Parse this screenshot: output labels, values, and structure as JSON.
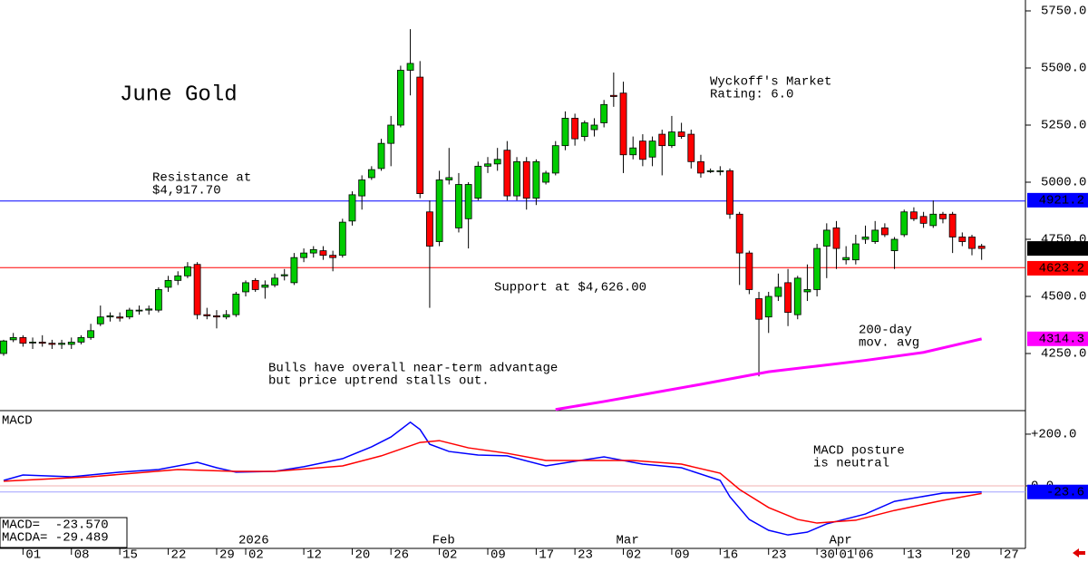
{
  "chart_data": [
    {
      "type": "candlestick",
      "title": "June Gold",
      "rating": [
        "Wyckoff's Market",
        "Rating: 6.0"
      ],
      "comment": [
        "Bulls have overall near-term advantage",
        "but price uptrend stalls out."
      ],
      "open": [
        4250,
        4310,
        4320,
        4300,
        4300,
        4295,
        4290,
        4290,
        4300,
        4320,
        4380,
        4410,
        4410,
        4410,
        4440,
        4440,
        4440,
        4540,
        4570,
        4590,
        4640,
        4420,
        4415,
        4410,
        4420,
        4520,
        4570,
        4540,
        4550,
        4590,
        4560,
        4670,
        4690,
        4700,
        4680,
        4680,
        4830,
        4940,
        5020,
        5060,
        5170,
        5250,
        5490,
        5460,
        4870,
        4740,
        5010,
        4800,
        4840,
        4930,
        5070,
        5080,
        5140,
        4940,
        5090,
        4930,
        5000,
        5040,
        5160,
        5280,
        5200,
        5230,
        5260,
        5380,
        5390,
        5120,
        5180,
        5110,
        5210,
        5160,
        5220,
        5210,
        5090,
        5050,
        5050,
        5050,
        4860,
        4690,
        4490,
        4410,
        4500,
        4560,
        4420,
        4520,
        4530,
        4720,
        4800,
        4660,
        4660,
        4750,
        4740,
        4800,
        4700,
        4770,
        4870,
        4850,
        4810,
        4860,
        4860,
        4760,
        4760,
        4720
      ],
      "high": [
        4310,
        4340,
        4330,
        4320,
        4330,
        4310,
        4310,
        4320,
        4330,
        4380,
        4460,
        4430,
        4430,
        4450,
        4460,
        4460,
        4540,
        4590,
        4610,
        4650,
        4650,
        4450,
        4440,
        4440,
        4520,
        4570,
        4580,
        4570,
        4600,
        4620,
        4690,
        4710,
        4720,
        4720,
        4700,
        4840,
        4960,
        5030,
        5070,
        5190,
        5290,
        5510,
        5670,
        5530,
        4920,
        5050,
        5150,
        5040,
        5000,
        5090,
        5110,
        5150,
        5180,
        5110,
        5110,
        5100,
        5050,
        5180,
        5310,
        5300,
        5270,
        5280,
        5360,
        5480,
        5440,
        5200,
        5210,
        5200,
        5230,
        5290,
        5260,
        5230,
        5120,
        5060,
        5070,
        5060,
        4870,
        4700,
        4520,
        4520,
        4600,
        4620,
        4590,
        4640,
        4730,
        4820,
        4830,
        4720,
        4770,
        4810,
        4830,
        4820,
        4760,
        4880,
        4890,
        4870,
        4920,
        4870,
        4870,
        4780,
        4770,
        4730
      ],
      "low": [
        4240,
        4300,
        4280,
        4270,
        4280,
        4270,
        4270,
        4270,
        4290,
        4310,
        4370,
        4390,
        4390,
        4400,
        4420,
        4420,
        4430,
        4520,
        4550,
        4580,
        4400,
        4400,
        4360,
        4400,
        4410,
        4500,
        4520,
        4490,
        4540,
        4570,
        4550,
        4650,
        4670,
        4660,
        4610,
        4670,
        4810,
        4880,
        5010,
        5050,
        5070,
        5240,
        5380,
        4930,
        4450,
        4720,
        4990,
        4780,
        4710,
        4920,
        5040,
        5050,
        4920,
        4920,
        4880,
        4900,
        4990,
        5030,
        5140,
        5160,
        5180,
        5200,
        5240,
        5330,
        5040,
        5100,
        5070,
        5070,
        5030,
        5150,
        5190,
        5060,
        5020,
        5040,
        5030,
        4840,
        4550,
        4510,
        4150,
        4340,
        4480,
        4370,
        4400,
        4480,
        4500,
        4580,
        4620,
        4640,
        4640,
        4730,
        4730,
        4760,
        4620,
        4760,
        4830,
        4800,
        4800,
        4820,
        4690,
        4720,
        4680,
        4660
      ],
      "close": [
        4305,
        4320,
        4295,
        4300,
        4295,
        4290,
        4295,
        4300,
        4320,
        4350,
        4410,
        4415,
        4405,
        4440,
        4440,
        4445,
        4530,
        4570,
        4590,
        4630,
        4420,
        4415,
        4410,
        4420,
        4510,
        4560,
        4530,
        4550,
        4580,
        4595,
        4670,
        4690,
        4705,
        4680,
        4670,
        4825,
        4945,
        5010,
        5055,
        5170,
        5250,
        5490,
        5520,
        4950,
        4720,
        5010,
        5020,
        4990,
        4990,
        5070,
        5080,
        5100,
        4940,
        5090,
        4930,
        5090,
        5040,
        5160,
        5280,
        5190,
        5260,
        5250,
        5340,
        5375,
        5120,
        5150,
        5100,
        5180,
        5160,
        5220,
        5200,
        5090,
        5040,
        5050,
        5050,
        4860,
        4690,
        4530,
        4400,
        4500,
        4540,
        4430,
        4580,
        4530,
        4710,
        4790,
        4710,
        4670,
        4730,
        4760,
        4790,
        4770,
        4750,
        4870,
        4840,
        4820,
        4860,
        4840,
        4760,
        4740,
        4710,
        4710
      ],
      "up_color": "#00cc00",
      "down_color": "#ff0000",
      "ylim": [
        4000,
        5797.6
      ],
      "yticks": [
        {
          "value": 4250,
          "label": "4250.0"
        },
        {
          "value": 4500,
          "label": "4500.0"
        },
        {
          "value": 4750,
          "label": "4750.0"
        },
        {
          "value": 5000,
          "label": "5000.0"
        },
        {
          "value": 5250,
          "label": "5250.0"
        },
        {
          "value": 5500,
          "label": "5500.0"
        },
        {
          "value": 5750,
          "label": "5750.0"
        }
      ],
      "levels": [
        {
          "value": 4917.7,
          "text": [
            "Resistance at",
            "$4,917.70"
          ],
          "tag": 4921.2,
          "color": "#0000ff"
        },
        {
          "value": 4626,
          "text": [
            "Support at $4,626.00"
          ],
          "tag": 4623.2,
          "color": "#ff0000"
        }
      ],
      "last_tag": {
        "value": 4710,
        "label": "4710.0"
      },
      "ma": {
        "text": [
          "200-day",
          "mov. avg"
        ],
        "color": "#ff00ff",
        "tag": 4314.3,
        "x": [
          57,
          62,
          66,
          72,
          79,
          84,
          89,
          95,
          101
        ],
        "values": [
          4005,
          4040,
          4070,
          4115,
          4170,
          4195,
          4220,
          4255,
          4314
        ]
      },
      "xticks": [
        {
          "value": 2,
          "label": "01"
        },
        {
          "value": 7,
          "label": "08"
        },
        {
          "value": 12,
          "label": "15"
        },
        {
          "value": 17,
          "label": "22"
        },
        {
          "value": 22,
          "label": "29"
        },
        {
          "value": 25,
          "label": "02"
        },
        {
          "value": 31,
          "label": "12"
        },
        {
          "value": 36,
          "label": "20"
        },
        {
          "value": 40,
          "label": "26"
        },
        {
          "value": 45,
          "label": "02"
        },
        {
          "value": 50,
          "label": "09"
        },
        {
          "value": 55,
          "label": "17"
        },
        {
          "value": 59,
          "label": "23"
        },
        {
          "value": 64,
          "label": "02"
        },
        {
          "value": 69,
          "label": "09"
        },
        {
          "value": 74,
          "label": "16"
        },
        {
          "value": 79,
          "label": "23"
        },
        {
          "value": 84,
          "label": "30"
        },
        {
          "value": 86,
          "label": "01"
        },
        {
          "value": 88,
          "label": "06"
        },
        {
          "value": 93,
          "label": "13"
        },
        {
          "value": 98,
          "label": "20"
        },
        {
          "value": 103,
          "label": "27"
        }
      ],
      "periods": [
        {
          "value": 25,
          "label": "2026"
        },
        {
          "value": 45,
          "label": "Feb"
        },
        {
          "value": 64,
          "label": "Mar"
        },
        {
          "value": 86,
          "label": "Apr"
        }
      ]
    },
    {
      "type": "line",
      "title": "MACD",
      "comment": [
        "MACD posture",
        "is neutral"
      ],
      "legend": [
        "MACD=  -23.570",
        "MACDA= -29.489"
      ],
      "ylim": [
        -242,
        291
      ],
      "yticks": [
        {
          "value": 200,
          "label": "+200.0"
        },
        {
          "value": 0,
          "label": "0.0"
        }
      ],
      "tag": -23.6,
      "series": [
        {
          "name": "MACD",
          "color": "#0000ff",
          "x": [
            0,
            2,
            7,
            12,
            16,
            20,
            22,
            24,
            28,
            31,
            35,
            38,
            40,
            42,
            43,
            44,
            46,
            49,
            52,
            56,
            59,
            62,
            66,
            70,
            74,
            75,
            77,
            79,
            81,
            83,
            85,
            89,
            92,
            97,
            101
          ],
          "values": [
            21,
            42,
            35,
            53,
            63,
            91,
            70,
            53,
            56,
            74,
            105,
            151,
            189,
            246,
            218,
            161,
            133,
            119,
            116,
            77,
            95,
            112,
            84,
            70,
            21,
            -42,
            -130,
            -172,
            -190,
            -179,
            -147,
            -109,
            -60,
            -28,
            -23.57
          ]
        },
        {
          "name": "MACDA",
          "color": "#ff0000",
          "x": [
            0,
            9,
            18,
            24,
            28,
            35,
            39,
            43,
            45,
            48,
            52,
            56,
            61,
            65,
            70,
            74,
            76,
            79,
            82,
            84,
            88,
            92,
            97,
            101
          ],
          "values": [
            18,
            35,
            63,
            56,
            56,
            77,
            116,
            168,
            175,
            147,
            126,
            98,
            98,
            98,
            84,
            49,
            -14,
            -84,
            -130,
            -144,
            -133,
            -95,
            -56,
            -29.489
          ]
        }
      ]
    }
  ]
}
